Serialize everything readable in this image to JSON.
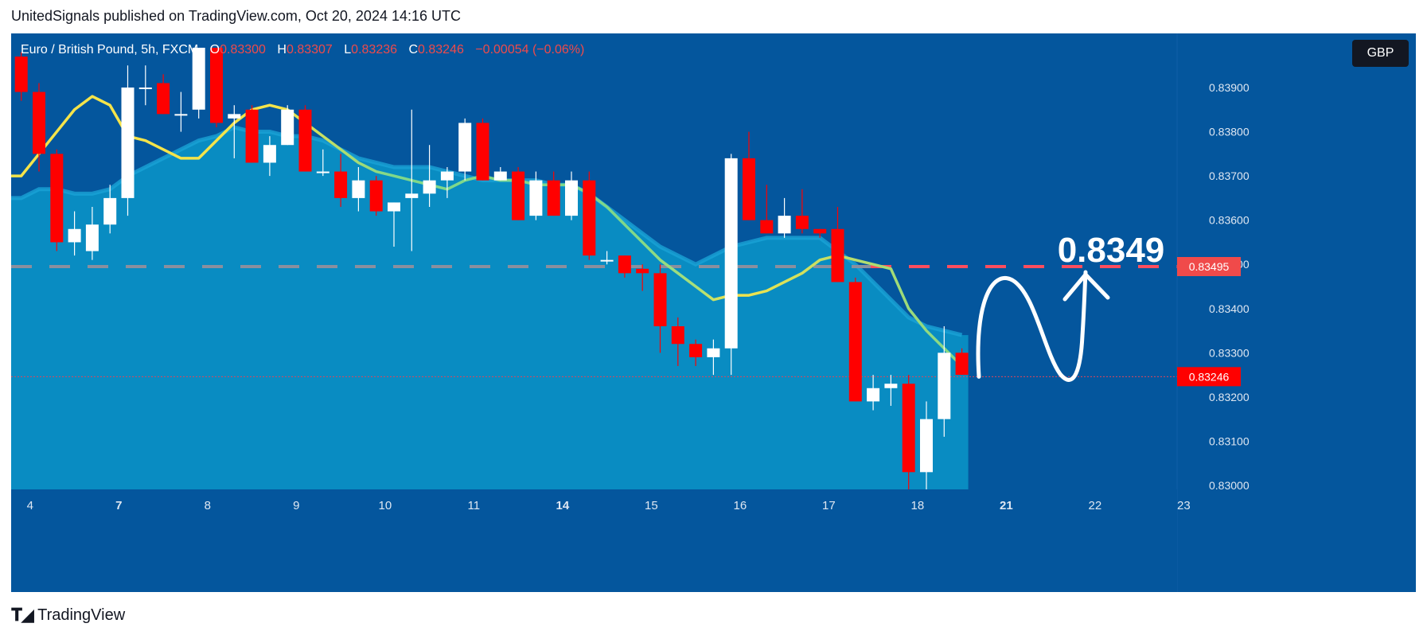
{
  "header": {
    "text": "UnitedSignals published on TradingView.com, Oct 20, 2024 14:16 UTC"
  },
  "symbol": {
    "name": "Euro / British Pound, 5h, FXCM",
    "o_label": "O",
    "o": "0.83300",
    "h_label": "H",
    "h": "0.83307",
    "l_label": "L",
    "l": "0.83236",
    "c_label": "C",
    "c": "0.83246",
    "change": "−0.00054 (−0.06%)"
  },
  "currency": "GBP",
  "annotation": {
    "target_text": "0.8349"
  },
  "footer": {
    "brand": "TradingView"
  },
  "colors": {
    "background": "#04569d",
    "up": "#ffffff",
    "down": "#ff0000",
    "band": "#0a8fc4",
    "ema": "#f5e44a",
    "ema_low": "#7fd88a",
    "target_line": "#ff4d5e"
  },
  "chart_data": {
    "type": "candlestick",
    "y_axis": {
      "min": 0.83,
      "max": 0.839,
      "ticks": [
        "0.83000",
        "0.83100",
        "0.83200",
        "0.83300",
        "0.83400",
        "0.83500",
        "0.83600",
        "0.83700",
        "0.83800",
        "0.83900"
      ]
    },
    "x_axis": {
      "ticks": [
        {
          "label": "4",
          "i": 0.5
        },
        {
          "label": "7",
          "i": 5.5
        },
        {
          "label": "8",
          "i": 10.5
        },
        {
          "label": "9",
          "i": 15.5
        },
        {
          "label": "10",
          "i": 20.5
        },
        {
          "label": "11",
          "i": 25.5
        },
        {
          "label": "14",
          "i": 30.5
        },
        {
          "label": "15",
          "i": 35.5
        },
        {
          "label": "16",
          "i": 40.5
        },
        {
          "label": "17",
          "i": 45.5
        },
        {
          "label": "18",
          "i": 50.5
        },
        {
          "label": "21",
          "i": 55.5
        },
        {
          "label": "22",
          "i": 60.5
        },
        {
          "label": "23",
          "i": 65.5
        }
      ]
    },
    "price_labels": [
      {
        "text": "0.83495",
        "value": 0.83495,
        "color": "#f04a4a"
      },
      {
        "text": "0.83246",
        "value": 0.83246,
        "color": "#ff0000"
      }
    ],
    "target_level": 0.83495,
    "candles": [
      {
        "o": 0.8397,
        "h": 0.8398,
        "l": 0.8387,
        "c": 0.8389
      },
      {
        "o": 0.8389,
        "h": 0.8391,
        "l": 0.8371,
        "c": 0.8375
      },
      {
        "o": 0.8375,
        "h": 0.8376,
        "l": 0.8353,
        "c": 0.8355
      },
      {
        "o": 0.8355,
        "h": 0.8362,
        "l": 0.8352,
        "c": 0.8358
      },
      {
        "o": 0.8353,
        "h": 0.8363,
        "l": 0.8351,
        "c": 0.8359
      },
      {
        "o": 0.8359,
        "h": 0.8368,
        "l": 0.8357,
        "c": 0.8365
      },
      {
        "o": 0.8365,
        "h": 0.8395,
        "l": 0.8361,
        "c": 0.839
      },
      {
        "o": 0.839,
        "h": 0.8395,
        "l": 0.8386,
        "c": 0.839
      },
      {
        "o": 0.8391,
        "h": 0.8393,
        "l": 0.8384,
        "c": 0.8384
      },
      {
        "o": 0.8384,
        "h": 0.8389,
        "l": 0.838,
        "c": 0.8384
      },
      {
        "o": 0.8385,
        "h": 0.8399,
        "l": 0.8383,
        "c": 0.8399
      },
      {
        "o": 0.8399,
        "h": 0.8399,
        "l": 0.8381,
        "c": 0.8382
      },
      {
        "o": 0.8383,
        "h": 0.8386,
        "l": 0.8374,
        "c": 0.8384
      },
      {
        "o": 0.8385,
        "h": 0.8386,
        "l": 0.8373,
        "c": 0.8373
      },
      {
        "o": 0.8373,
        "h": 0.8379,
        "l": 0.837,
        "c": 0.8377
      },
      {
        "o": 0.8377,
        "h": 0.8386,
        "l": 0.8377,
        "c": 0.8385
      },
      {
        "o": 0.8385,
        "h": 0.8386,
        "l": 0.8371,
        "c": 0.8371
      },
      {
        "o": 0.8371,
        "h": 0.8376,
        "l": 0.837,
        "c": 0.8371
      },
      {
        "o": 0.8371,
        "h": 0.8375,
        "l": 0.8363,
        "c": 0.8365
      },
      {
        "o": 0.8365,
        "h": 0.8372,
        "l": 0.8362,
        "c": 0.8369
      },
      {
        "o": 0.8369,
        "h": 0.837,
        "l": 0.8361,
        "c": 0.8362
      },
      {
        "o": 0.8362,
        "h": 0.8364,
        "l": 0.8354,
        "c": 0.8364
      },
      {
        "o": 0.8365,
        "h": 0.8385,
        "l": 0.8353,
        "c": 0.8366
      },
      {
        "o": 0.8366,
        "h": 0.8377,
        "l": 0.8363,
        "c": 0.8369
      },
      {
        "o": 0.8369,
        "h": 0.8372,
        "l": 0.8365,
        "c": 0.8371
      },
      {
        "o": 0.8371,
        "h": 0.8383,
        "l": 0.8369,
        "c": 0.8382
      },
      {
        "o": 0.8382,
        "h": 0.8383,
        "l": 0.8369,
        "c": 0.8369
      },
      {
        "o": 0.8369,
        "h": 0.8372,
        "l": 0.8369,
        "c": 0.8371
      },
      {
        "o": 0.8371,
        "h": 0.8372,
        "l": 0.836,
        "c": 0.836
      },
      {
        "o": 0.8361,
        "h": 0.8371,
        "l": 0.836,
        "c": 0.8369
      },
      {
        "o": 0.8369,
        "h": 0.8371,
        "l": 0.8361,
        "c": 0.8361
      },
      {
        "o": 0.8361,
        "h": 0.8371,
        "l": 0.836,
        "c": 0.8369
      },
      {
        "o": 0.8369,
        "h": 0.8371,
        "l": 0.8351,
        "c": 0.8352
      },
      {
        "o": 0.8351,
        "h": 0.8353,
        "l": 0.835,
        "c": 0.8351
      },
      {
        "o": 0.8352,
        "h": 0.8352,
        "l": 0.8347,
        "c": 0.8348
      },
      {
        "o": 0.8349,
        "h": 0.835,
        "l": 0.8344,
        "c": 0.8348
      },
      {
        "o": 0.8348,
        "h": 0.835,
        "l": 0.833,
        "c": 0.8336
      },
      {
        "o": 0.8336,
        "h": 0.8338,
        "l": 0.8327,
        "c": 0.8332
      },
      {
        "o": 0.8332,
        "h": 0.8333,
        "l": 0.8327,
        "c": 0.8329
      },
      {
        "o": 0.8329,
        "h": 0.8333,
        "l": 0.8325,
        "c": 0.8331
      },
      {
        "o": 0.8331,
        "h": 0.8375,
        "l": 0.8325,
        "c": 0.8374
      },
      {
        "o": 0.8374,
        "h": 0.838,
        "l": 0.836,
        "c": 0.836
      },
      {
        "o": 0.836,
        "h": 0.8368,
        "l": 0.8357,
        "c": 0.8357
      },
      {
        "o": 0.8357,
        "h": 0.8365,
        "l": 0.8356,
        "c": 0.8361
      },
      {
        "o": 0.8361,
        "h": 0.8367,
        "l": 0.8357,
        "c": 0.8358
      },
      {
        "o": 0.8358,
        "h": 0.8358,
        "l": 0.8356,
        "c": 0.8357
      },
      {
        "o": 0.8358,
        "h": 0.8363,
        "l": 0.8346,
        "c": 0.8346
      },
      {
        "o": 0.8346,
        "h": 0.8347,
        "l": 0.8319,
        "c": 0.8319
      },
      {
        "o": 0.8319,
        "h": 0.8325,
        "l": 0.8317,
        "c": 0.8322
      },
      {
        "o": 0.8322,
        "h": 0.8325,
        "l": 0.8318,
        "c": 0.8323
      },
      {
        "o": 0.8323,
        "h": 0.8325,
        "l": 0.8298,
        "c": 0.8303
      },
      {
        "o": 0.8303,
        "h": 0.8319,
        "l": 0.8299,
        "c": 0.8315
      },
      {
        "o": 0.8315,
        "h": 0.8336,
        "l": 0.8311,
        "c": 0.833
      },
      {
        "o": 0.833,
        "h": 0.8331,
        "l": 0.8325,
        "c": 0.8325
      }
    ],
    "ema": [
      0.837,
      0.8375,
      0.838,
      0.8385,
      0.8388,
      0.8386,
      0.8379,
      0.8378,
      0.8376,
      0.8374,
      0.8374,
      0.8378,
      0.8382,
      0.8385,
      0.8386,
      0.8385,
      0.8382,
      0.8379,
      0.8376,
      0.8373,
      0.8371,
      0.837,
      0.8369,
      0.8368,
      0.8367,
      0.8369,
      0.837,
      0.8369,
      0.8369,
      0.8368,
      0.8368,
      0.8368,
      0.8366,
      0.8363,
      0.8359,
      0.8355,
      0.8351,
      0.8348,
      0.8345,
      0.8342,
      0.8343,
      0.8343,
      0.8344,
      0.8346,
      0.8348,
      0.8351,
      0.8352,
      0.8351,
      0.835,
      0.8349,
      0.834,
      0.8335,
      0.8331,
      0.8327
    ],
    "band_upper": [
      0.8365,
      0.8367,
      0.8367,
      0.8366,
      0.8366,
      0.8367,
      0.837,
      0.8372,
      0.8374,
      0.8376,
      0.8378,
      0.8379,
      0.8381,
      0.838,
      0.838,
      0.8379,
      0.8379,
      0.8378,
      0.8376,
      0.8374,
      0.8373,
      0.8372,
      0.8372,
      0.8372,
      0.8371,
      0.837,
      0.8369,
      0.8369,
      0.8369,
      0.8369,
      0.8368,
      0.8368,
      0.8366,
      0.8363,
      0.836,
      0.8357,
      0.8354,
      0.8352,
      0.835,
      0.8352,
      0.8354,
      0.8355,
      0.8356,
      0.8356,
      0.8356,
      0.8356,
      0.8353,
      0.835,
      0.8346,
      0.8342,
      0.8338,
      0.8336,
      0.8335,
      0.8334
    ]
  }
}
